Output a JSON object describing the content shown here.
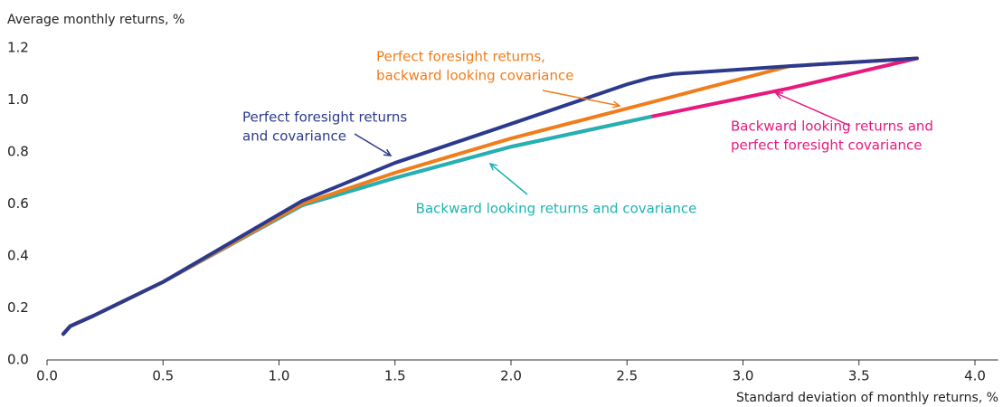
{
  "chart_data": {
    "type": "line",
    "ylabel": "Average monthly returns, %",
    "xlabel": "Standard deviation of monthly returns, %",
    "xlim": [
      0,
      4.1
    ],
    "ylim": [
      0,
      1.2
    ],
    "xticks": [
      {
        "value": 0,
        "label": "0.0"
      },
      0.5,
      {
        "value": 1,
        "label": "1.0"
      },
      1.5,
      {
        "value": 2,
        "label": "2.0"
      },
      2.5,
      {
        "value": 3,
        "label": "3.0"
      },
      3.5,
      {
        "value": 4,
        "label": "4.0"
      }
    ],
    "yticks": [
      {
        "value": 0,
        "label": "0.0"
      },
      0.2,
      0.4,
      0.6,
      0.8,
      {
        "value": 1,
        "label": "1.0"
      },
      1.2
    ],
    "grid": false,
    "series": [
      {
        "name": "Backward looking returns and perfect foresight covariance",
        "color": "#e6197f",
        "x": [
          0.07,
          0.1,
          0.2,
          0.5,
          1.1,
          1.5,
          2.0,
          2.6,
          3.2,
          3.75
        ],
        "values": [
          0.1,
          0.13,
          0.17,
          0.3,
          0.595,
          0.7,
          0.82,
          0.935,
          1.045,
          1.16
        ]
      },
      {
        "name": "Backward looking returns and covariance",
        "color": "#1fb3b3",
        "x": [
          0.07,
          0.1,
          0.2,
          0.5,
          1.1,
          1.5,
          2.0,
          2.6
        ],
        "values": [
          0.1,
          0.13,
          0.17,
          0.3,
          0.595,
          0.7,
          0.82,
          0.935
        ]
      },
      {
        "name": "Perfect foresight returns, backward looking covariance",
        "color": "#f07d1a",
        "x": [
          0.07,
          0.1,
          0.2,
          0.5,
          1.1,
          1.5,
          2.0,
          2.6,
          3.2,
          3.75
        ],
        "values": [
          0.1,
          0.13,
          0.17,
          0.3,
          0.6,
          0.72,
          0.852,
          0.99,
          1.13,
          1.16
        ]
      },
      {
        "name": "Perfect foresight returns and covariance",
        "color": "#2b3a8c",
        "x": [
          0.07,
          0.1,
          0.2,
          0.5,
          1.1,
          1.5,
          2.0,
          2.5,
          2.6,
          2.7,
          3.2,
          3.75
        ],
        "values": [
          0.1,
          0.13,
          0.17,
          0.3,
          0.612,
          0.758,
          0.908,
          1.06,
          1.085,
          1.1,
          1.13,
          1.16
        ]
      }
    ],
    "annotations": [
      {
        "lines": [
          "Perfect foresight returns",
          "and covariance"
        ],
        "color": "#2b3a8c"
      },
      {
        "lines": [
          "Perfect foresight returns,",
          "backward looking covariance"
        ],
        "color": "#f07d1a"
      },
      {
        "lines": [
          "Backward looking returns and",
          "perfect foresight covariance"
        ],
        "color": "#e6197f"
      },
      {
        "lines": [
          "Backward looking returns and covariance"
        ],
        "color": "#1fb3b3"
      }
    ]
  }
}
